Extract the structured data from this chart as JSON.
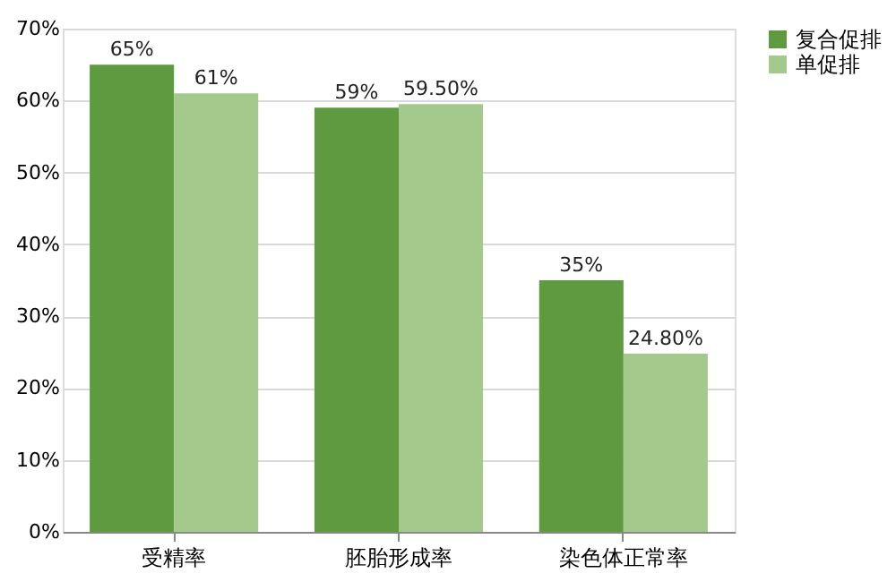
{
  "chart_data": {
    "type": "bar",
    "categories": [
      "受精率",
      "胚胎形成率",
      "染色体正常率"
    ],
    "series": [
      {
        "name": "复合促排",
        "color": "#5e9a3f",
        "values": [
          65,
          59,
          35
        ],
        "value_labels": [
          "65%",
          "59%",
          "35%"
        ]
      },
      {
        "name": "单促排",
        "color": "#a4c98c",
        "values": [
          61,
          59.5,
          24.8
        ],
        "value_labels": [
          "61%",
          "59.50%",
          "24.80%"
        ]
      }
    ],
    "ylim": [
      0,
      70
    ],
    "yticks": [
      {
        "value": 0,
        "label": "0%"
      },
      {
        "value": 10,
        "label": "10%"
      },
      {
        "value": 20,
        "label": "20%"
      },
      {
        "value": 30,
        "label": "30%"
      },
      {
        "value": 40,
        "label": "40%"
      },
      {
        "value": 50,
        "label": "50%"
      },
      {
        "value": 60,
        "label": "60%"
      },
      {
        "value": 70,
        "label": "70%"
      }
    ],
    "grid": "y",
    "legend": "right"
  }
}
